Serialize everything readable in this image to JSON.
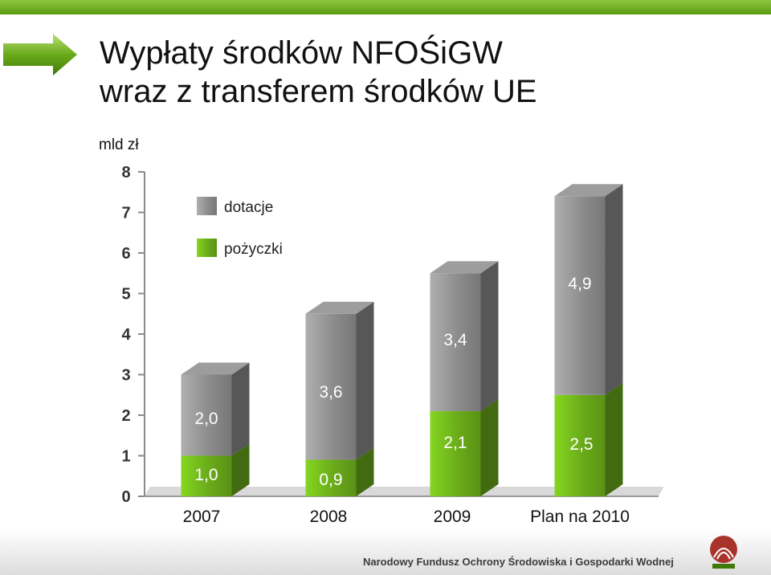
{
  "slide": {
    "title_line1": "Wypłaty środków NFOŚiGW",
    "title_line2": "wraz z transferem środków UE",
    "unit": "mld zł",
    "footer": "Narodowy Fundusz Ochrony Środowiska i Gospodarki Wodnej",
    "accent_color": "#6aab1a"
  },
  "chart_data": {
    "type": "bar",
    "stacked": true,
    "three_d": true,
    "categories": [
      "2007",
      "2008",
      "2009",
      "Plan na 2010"
    ],
    "series": [
      {
        "name": "pożyczki",
        "values": [
          1.0,
          0.9,
          2.1,
          2.5
        ],
        "labels": [
          "1,0",
          "0,9",
          "2,1",
          "2,5"
        ],
        "color": "#6aab1a"
      },
      {
        "name": "dotacje",
        "values": [
          2.0,
          3.6,
          3.4,
          4.9
        ],
        "labels": [
          "2,0",
          "3,6",
          "3,4",
          "4,9"
        ],
        "color": "#8c8c8c"
      }
    ],
    "ylim": [
      0,
      8
    ],
    "yticks": [
      "0",
      "1",
      "2",
      "3",
      "4",
      "5",
      "6",
      "7",
      "8"
    ],
    "legend_position": "top-left",
    "grid": false
  }
}
